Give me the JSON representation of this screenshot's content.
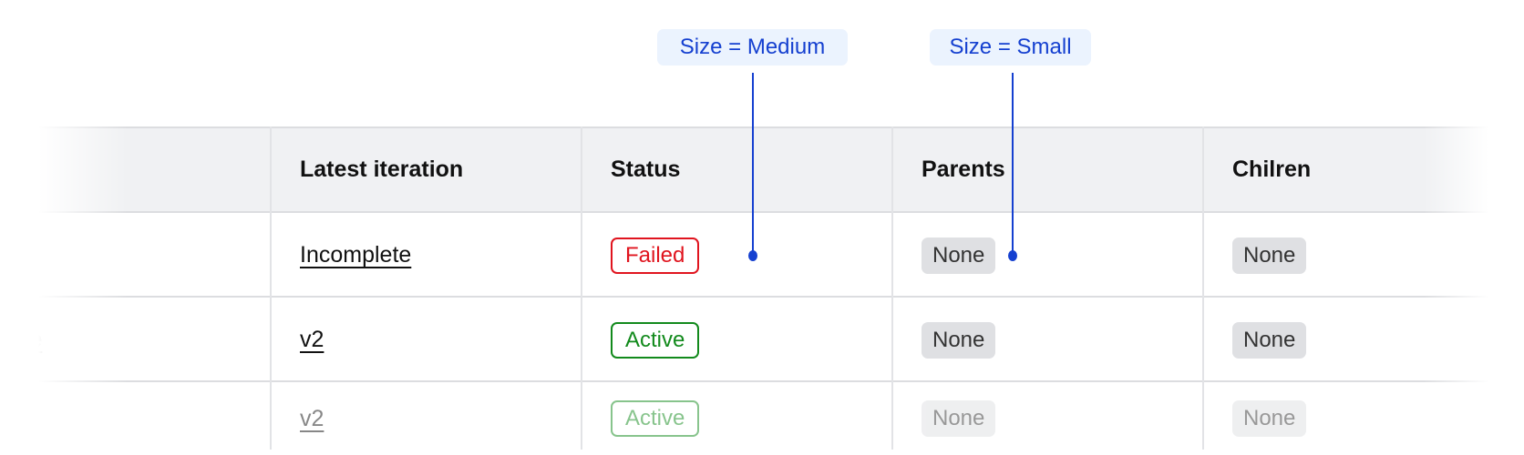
{
  "annotations": [
    {
      "label": "Size = Medium"
    },
    {
      "label": "Size = Small"
    }
  ],
  "table": {
    "headers": [
      "",
      "Latest iteration",
      "Status",
      "Parents",
      "Chilren"
    ],
    "rows": [
      {
        "name": "",
        "iteration": "Incomplete",
        "status": "Failed",
        "parents": "None",
        "children": "None"
      },
      {
        "name": "ce",
        "iteration": "v2",
        "status": "Active",
        "parents": "None",
        "children": "None"
      },
      {
        "name": "",
        "iteration": "v2",
        "status": "Active",
        "parents": "None",
        "children": "None"
      }
    ]
  },
  "colors": {
    "failed": "#e0141e",
    "active": "#128a1c",
    "annotation": "#1540d0",
    "header_bg": "#f0f1f3"
  }
}
